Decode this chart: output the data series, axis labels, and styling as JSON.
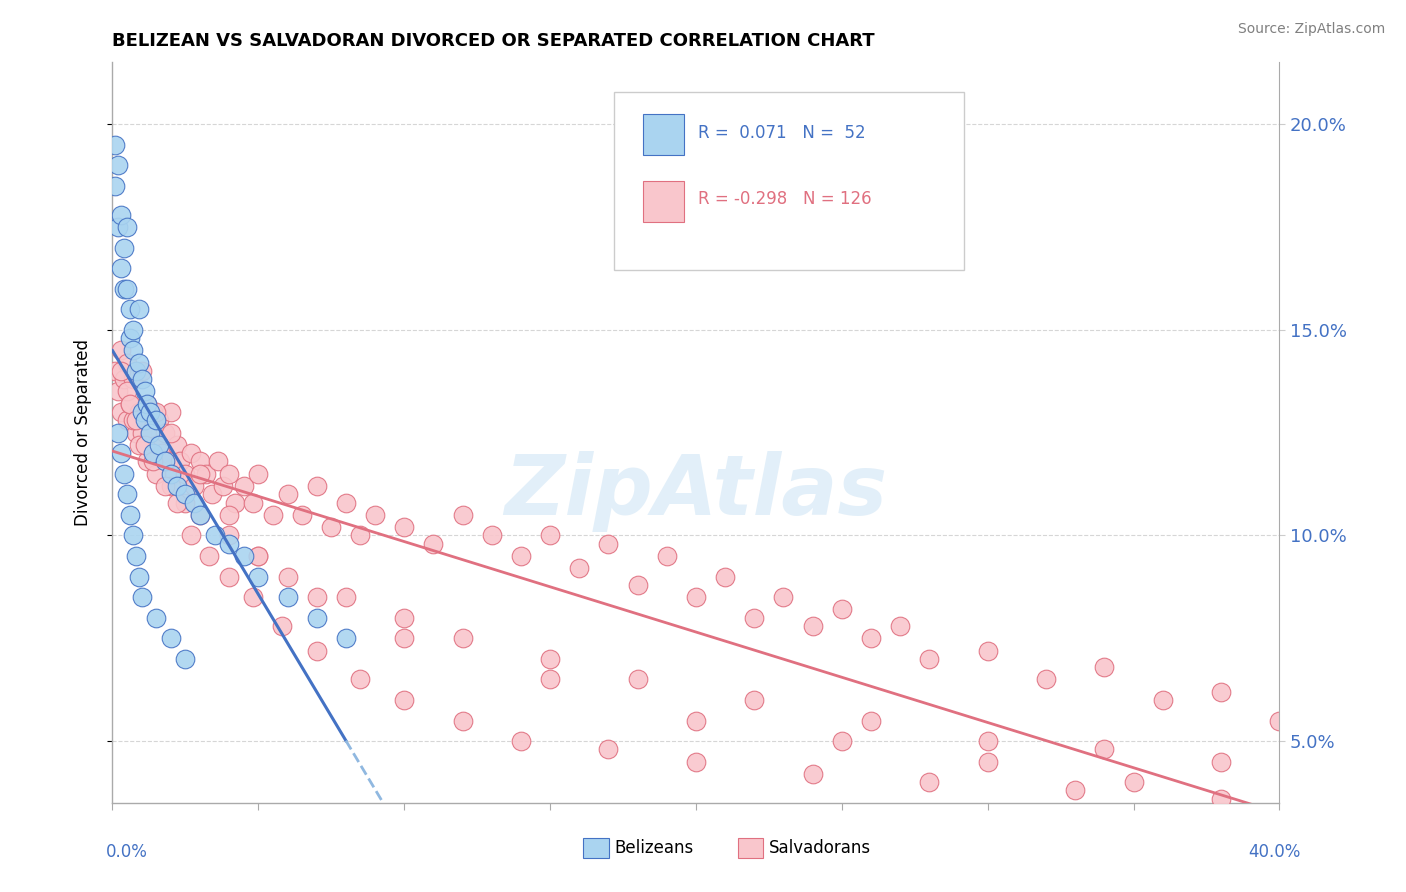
{
  "title": "BELIZEAN VS SALVADORAN DIVORCED OR SEPARATED CORRELATION CHART",
  "source": "Source: ZipAtlas.com",
  "ylabel": "Divorced or Separated",
  "xlim": [
    0.0,
    0.4
  ],
  "ylim": [
    0.035,
    0.215
  ],
  "yticks": [
    0.05,
    0.1,
    0.15,
    0.2
  ],
  "ytick_labels": [
    "5.0%",
    "10.0%",
    "15.0%",
    "20.0%"
  ],
  "belizean_color": "#aad4f0",
  "belizean_edge": "#4472c4",
  "salvadoran_color": "#f9c6cc",
  "salvadoran_edge": "#e07080",
  "trend_blue_solid": "#4472c4",
  "trend_blue_dashed": "#90b8e0",
  "trend_pink": "#e07080",
  "watermark": "ZipAtlas",
  "bel_x": [
    0.001,
    0.001,
    0.002,
    0.002,
    0.003,
    0.003,
    0.004,
    0.004,
    0.005,
    0.005,
    0.006,
    0.006,
    0.007,
    0.007,
    0.008,
    0.009,
    0.009,
    0.01,
    0.01,
    0.011,
    0.011,
    0.012,
    0.013,
    0.013,
    0.014,
    0.015,
    0.016,
    0.018,
    0.02,
    0.022,
    0.025,
    0.028,
    0.03,
    0.035,
    0.04,
    0.045,
    0.05,
    0.06,
    0.07,
    0.08,
    0.002,
    0.003,
    0.004,
    0.005,
    0.006,
    0.007,
    0.008,
    0.009,
    0.01,
    0.015,
    0.02,
    0.025
  ],
  "bel_y": [
    0.195,
    0.185,
    0.19,
    0.175,
    0.178,
    0.165,
    0.17,
    0.16,
    0.175,
    0.16,
    0.155,
    0.148,
    0.145,
    0.15,
    0.14,
    0.155,
    0.142,
    0.138,
    0.13,
    0.135,
    0.128,
    0.132,
    0.125,
    0.13,
    0.12,
    0.128,
    0.122,
    0.118,
    0.115,
    0.112,
    0.11,
    0.108,
    0.105,
    0.1,
    0.098,
    0.095,
    0.09,
    0.085,
    0.08,
    0.075,
    0.125,
    0.12,
    0.115,
    0.11,
    0.105,
    0.1,
    0.095,
    0.09,
    0.085,
    0.08,
    0.075,
    0.07
  ],
  "sal_x": [
    0.001,
    0.002,
    0.003,
    0.003,
    0.004,
    0.005,
    0.005,
    0.006,
    0.007,
    0.008,
    0.009,
    0.01,
    0.01,
    0.011,
    0.012,
    0.013,
    0.014,
    0.015,
    0.016,
    0.017,
    0.018,
    0.019,
    0.02,
    0.021,
    0.022,
    0.023,
    0.025,
    0.027,
    0.028,
    0.03,
    0.032,
    0.034,
    0.036,
    0.038,
    0.04,
    0.042,
    0.045,
    0.048,
    0.05,
    0.055,
    0.06,
    0.065,
    0.07,
    0.075,
    0.08,
    0.085,
    0.09,
    0.1,
    0.11,
    0.12,
    0.13,
    0.14,
    0.15,
    0.16,
    0.17,
    0.18,
    0.19,
    0.2,
    0.21,
    0.22,
    0.23,
    0.24,
    0.25,
    0.26,
    0.27,
    0.28,
    0.3,
    0.32,
    0.34,
    0.36,
    0.38,
    0.4,
    0.005,
    0.007,
    0.009,
    0.012,
    0.015,
    0.02,
    0.025,
    0.03,
    0.04,
    0.05,
    0.06,
    0.08,
    0.1,
    0.12,
    0.15,
    0.18,
    0.22,
    0.26,
    0.3,
    0.34,
    0.38,
    0.003,
    0.006,
    0.008,
    0.011,
    0.014,
    0.018,
    0.022,
    0.027,
    0.033,
    0.04,
    0.048,
    0.058,
    0.07,
    0.085,
    0.1,
    0.12,
    0.14,
    0.17,
    0.2,
    0.24,
    0.28,
    0.33,
    0.38,
    0.35,
    0.3,
    0.25,
    0.2,
    0.15,
    0.1,
    0.07,
    0.05,
    0.04,
    0.03,
    0.02,
    0.015
  ],
  "sal_y": [
    0.14,
    0.135,
    0.145,
    0.13,
    0.138,
    0.142,
    0.128,
    0.132,
    0.138,
    0.125,
    0.13,
    0.14,
    0.125,
    0.128,
    0.132,
    0.125,
    0.13,
    0.122,
    0.128,
    0.12,
    0.125,
    0.118,
    0.13,
    0.115,
    0.122,
    0.118,
    0.115,
    0.12,
    0.112,
    0.118,
    0.115,
    0.11,
    0.118,
    0.112,
    0.115,
    0.108,
    0.112,
    0.108,
    0.115,
    0.105,
    0.11,
    0.105,
    0.112,
    0.102,
    0.108,
    0.1,
    0.105,
    0.102,
    0.098,
    0.105,
    0.1,
    0.095,
    0.1,
    0.092,
    0.098,
    0.088,
    0.095,
    0.085,
    0.09,
    0.08,
    0.085,
    0.078,
    0.082,
    0.075,
    0.078,
    0.07,
    0.072,
    0.065,
    0.068,
    0.06,
    0.062,
    0.055,
    0.135,
    0.128,
    0.122,
    0.118,
    0.115,
    0.112,
    0.108,
    0.105,
    0.1,
    0.095,
    0.09,
    0.085,
    0.08,
    0.075,
    0.07,
    0.065,
    0.06,
    0.055,
    0.05,
    0.048,
    0.045,
    0.14,
    0.132,
    0.128,
    0.122,
    0.118,
    0.112,
    0.108,
    0.1,
    0.095,
    0.09,
    0.085,
    0.078,
    0.072,
    0.065,
    0.06,
    0.055,
    0.05,
    0.048,
    0.045,
    0.042,
    0.04,
    0.038,
    0.036,
    0.04,
    0.045,
    0.05,
    0.055,
    0.065,
    0.075,
    0.085,
    0.095,
    0.105,
    0.115,
    0.125,
    0.13
  ]
}
